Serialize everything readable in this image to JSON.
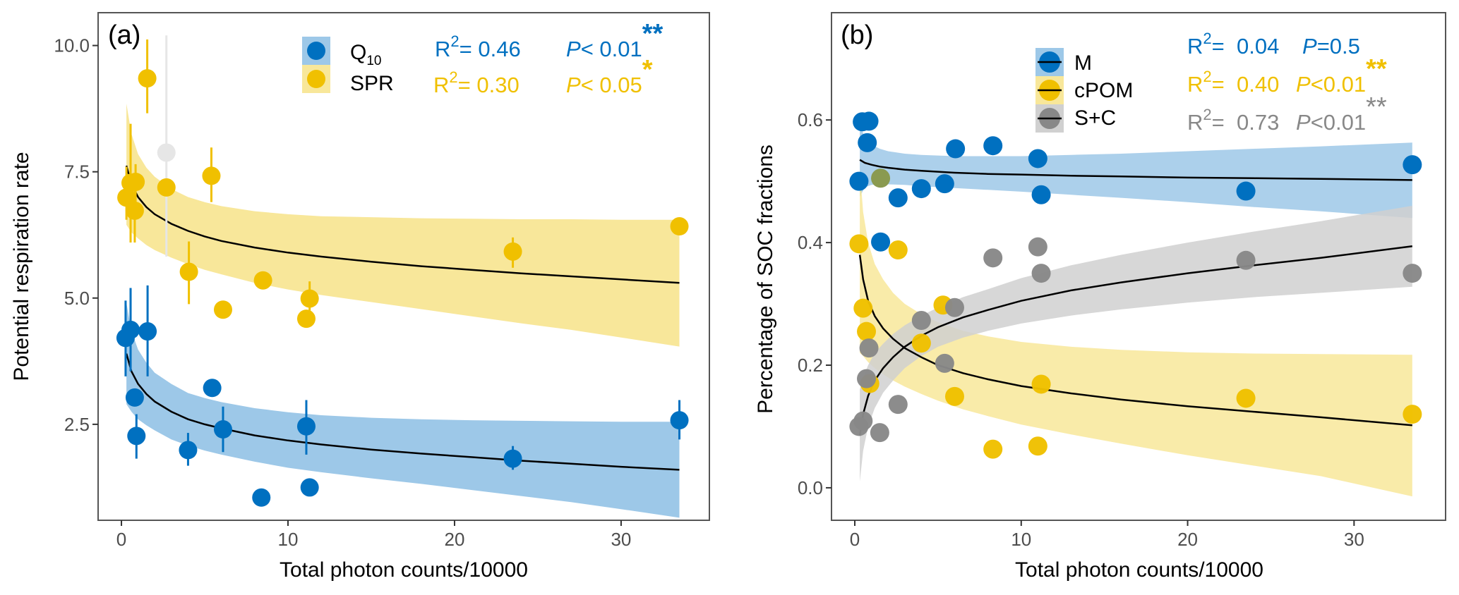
{
  "chart_data": [
    {
      "type": "scatter",
      "panel_label": "(a)",
      "xlabel": "Total photon counts/10000",
      "ylabel": "Potential respiration rate",
      "xlim": [
        -1.4,
        35.3
      ],
      "ylim": [
        0.6,
        10.65
      ],
      "xticks": [
        0,
        10,
        20,
        30
      ],
      "xtick_labels": [
        "0",
        "10",
        "20",
        "30"
      ],
      "yticks": [
        2.5,
        5.0,
        7.5,
        10.0
      ],
      "ytick_labels": [
        "2.5",
        "5.0",
        "7.5",
        "10.0"
      ],
      "grid": false,
      "legend_position": "top-right",
      "series": [
        {
          "name": "Q10",
          "legend_label": "Q",
          "legend_subscript": "10",
          "color": "#0070C0",
          "ribbon_color": "#9DC8E8",
          "stats": {
            "r2_label": "R",
            "r2_sup": "2",
            "r2_value": "= 0.46",
            "p_label": "P",
            "p_value": "< 0.01",
            "signif": "**"
          },
          "points": [
            {
              "x": 0.25,
              "y": 4.21,
              "lo": 3.45,
              "hi": 4.95
            },
            {
              "x": 0.55,
              "y": 4.37,
              "lo": 3.55,
              "hi": 5.2
            },
            {
              "x": 1.57,
              "y": 4.34,
              "lo": 3.45,
              "hi": 5.25
            },
            {
              "x": 0.8,
              "y": 3.03,
              "lo": null,
              "hi": null
            },
            {
              "x": 0.9,
              "y": 2.27,
              "lo": 1.82,
              "hi": 2.7
            },
            {
              "x": 4.0,
              "y": 1.99,
              "lo": 1.68,
              "hi": 2.33
            },
            {
              "x": 5.45,
              "y": 3.22,
              "lo": null,
              "hi": null
            },
            {
              "x": 6.1,
              "y": 2.4,
              "lo": 1.95,
              "hi": 2.85
            },
            {
              "x": 11.1,
              "y": 2.46,
              "lo": 1.9,
              "hi": 2.98
            },
            {
              "x": 8.4,
              "y": 1.05,
              "lo": null,
              "hi": null
            },
            {
              "x": 11.3,
              "y": 1.25,
              "lo": null,
              "hi": null
            },
            {
              "x": 23.5,
              "y": 1.82,
              "lo": 1.6,
              "hi": 2.07
            },
            {
              "x": 33.5,
              "y": 2.58,
              "lo": 2.2,
              "hi": 2.98
            }
          ],
          "fit": {
            "x": [
              0.3,
              0.6,
              1,
              1.5,
              2,
              3,
              4,
              5,
              6,
              8,
              10,
              12,
              15,
              18,
              21,
              24,
              27,
              30,
              33.5
            ],
            "y": [
              3.9,
              3.55,
              3.3,
              3.1,
              2.95,
              2.75,
              2.6,
              2.5,
              2.42,
              2.28,
              2.18,
              2.1,
              2.0,
              1.92,
              1.85,
              1.78,
              1.72,
              1.66,
              1.6
            ],
            "lo": [
              2.9,
              2.75,
              2.6,
              2.48,
              2.38,
              2.2,
              2.08,
              1.98,
              1.9,
              1.76,
              1.64,
              1.55,
              1.43,
              1.32,
              1.2,
              1.08,
              0.96,
              0.82,
              0.65
            ],
            "hi": [
              4.9,
              4.35,
              3.98,
              3.72,
              3.52,
              3.3,
              3.12,
              3.02,
              2.94,
              2.82,
              2.74,
              2.68,
              2.63,
              2.6,
              2.58,
              2.57,
              2.56,
              2.55,
              2.55
            ]
          }
        },
        {
          "name": "SPR",
          "legend_label": "SPR",
          "legend_subscript": "",
          "color": "#F0C000",
          "ribbon_color": "#F8E79A",
          "stats": {
            "r2_label": "R",
            "r2_sup": "2",
            "r2_value": "= 0.30",
            "p_label": "P",
            "p_value": "< 0.05",
            "signif": "*"
          },
          "points": [
            {
              "x": 0.3,
              "y": 6.99,
              "lo": 6.55,
              "hi": 7.6
            },
            {
              "x": 0.55,
              "y": 7.28,
              "lo": 6.1,
              "hi": 8.45
            },
            {
              "x": 0.8,
              "y": 6.73,
              "lo": 6.1,
              "hi": 7.4
            },
            {
              "x": 0.85,
              "y": 7.3,
              "lo": 6.7,
              "hi": 7.65
            },
            {
              "x": 1.55,
              "y": 9.35,
              "lo": 8.66,
              "hi": 10.12
            },
            {
              "x": 2.7,
              "y": 7.19,
              "lo": null,
              "hi": null
            },
            {
              "x": 5.4,
              "y": 7.42,
              "lo": 6.9,
              "hi": 7.98
            },
            {
              "x": 4.05,
              "y": 5.52,
              "lo": 4.88,
              "hi": 6.12
            },
            {
              "x": 6.1,
              "y": 4.77,
              "lo": null,
              "hi": null
            },
            {
              "x": 8.5,
              "y": 5.35,
              "lo": null,
              "hi": null
            },
            {
              "x": 11.1,
              "y": 4.59,
              "lo": null,
              "hi": null
            },
            {
              "x": 11.3,
              "y": 4.99,
              "lo": 4.75,
              "hi": 5.33
            },
            {
              "x": 23.5,
              "y": 5.92,
              "lo": 5.6,
              "hi": 6.2
            },
            {
              "x": 33.5,
              "y": 6.42,
              "lo": null,
              "hi": null
            }
          ],
          "fit": {
            "x": [
              0.3,
              0.6,
              1,
              1.5,
              2,
              3,
              4,
              5,
              6,
              8,
              10,
              12,
              15,
              18,
              21,
              24,
              27,
              30,
              33.5
            ],
            "y": [
              7.62,
              7.25,
              7.0,
              6.8,
              6.66,
              6.47,
              6.33,
              6.22,
              6.13,
              6.0,
              5.9,
              5.82,
              5.72,
              5.63,
              5.56,
              5.49,
              5.43,
              5.37,
              5.3
            ],
            "lo": [
              6.45,
              6.3,
              6.18,
              6.05,
              5.95,
              5.8,
              5.67,
              5.56,
              5.47,
              5.3,
              5.17,
              5.06,
              4.92,
              4.78,
              4.64,
              4.5,
              4.37,
              4.22,
              4.04
            ],
            "hi": [
              8.85,
              8.25,
              7.85,
              7.58,
              7.4,
              7.16,
              7.0,
              6.9,
              6.82,
              6.72,
              6.66,
              6.62,
              6.6,
              6.58,
              6.57,
              6.56,
              6.56,
              6.55,
              6.55
            ]
          }
        }
      ],
      "extra_points": [
        {
          "x": 2.7,
          "y": 7.88,
          "lo": 5.82,
          "hi": 10.2,
          "color": "#E6E6E6"
        }
      ]
    },
    {
      "type": "scatter",
      "panel_label": "(b)",
      "xlabel": "Total photon counts/10000",
      "ylabel": "Percentage of SOC fractions",
      "xlim": [
        -1.4,
        35.5
      ],
      "ylim": [
        -0.053,
        0.775
      ],
      "xticks": [
        0,
        10,
        20,
        30
      ],
      "xtick_labels": [
        "0",
        "10",
        "20",
        "30"
      ],
      "yticks": [
        0.0,
        0.2,
        0.4,
        0.6
      ],
      "ytick_labels": [
        "0.0",
        "0.2",
        "0.4",
        "0.6"
      ],
      "grid": false,
      "legend_position": "top-right",
      "series": [
        {
          "name": "M",
          "legend_label": "M",
          "color": "#0070C0",
          "ribbon_color": "#9DC8E8",
          "stats": {
            "r2_label": "R",
            "r2_sup": "2",
            "r2_value": "=  0.04",
            "p_label": "P",
            "p_value": "=0.5",
            "signif": ""
          },
          "points": [
            {
              "x": 0.45,
              "y": 0.597
            },
            {
              "x": 0.85,
              "y": 0.598
            },
            {
              "x": 0.75,
              "y": 0.563
            },
            {
              "x": 0.25,
              "y": 0.5
            },
            {
              "x": 2.6,
              "y": 0.473
            },
            {
              "x": 4.0,
              "y": 0.488
            },
            {
              "x": 5.4,
              "y": 0.496
            },
            {
              "x": 6.05,
              "y": 0.553
            },
            {
              "x": 8.3,
              "y": 0.558
            },
            {
              "x": 11.0,
              "y": 0.537
            },
            {
              "x": 11.2,
              "y": 0.478
            },
            {
              "x": 1.55,
              "y": 0.401
            },
            {
              "x": 23.5,
              "y": 0.484
            },
            {
              "x": 33.5,
              "y": 0.527
            }
          ],
          "fit": {
            "x": [
              0.3,
              0.6,
              1,
              1.5,
              2,
              3,
              4,
              6,
              8,
              10,
              13,
              16,
              20,
              24,
              28,
              33.5
            ],
            "y": [
              0.535,
              0.53,
              0.527,
              0.524,
              0.522,
              0.519,
              0.517,
              0.514,
              0.512,
              0.511,
              0.509,
              0.508,
              0.506,
              0.505,
              0.504,
              0.502
            ],
            "lo": [
              0.475,
              0.49,
              0.494,
              0.495,
              0.495,
              0.494,
              0.492,
              0.489,
              0.486,
              0.483,
              0.478,
              0.473,
              0.466,
              0.458,
              0.451,
              0.44
            ],
            "hi": [
              0.595,
              0.57,
              0.56,
              0.553,
              0.549,
              0.545,
              0.543,
              0.541,
              0.541,
              0.541,
              0.543,
              0.545,
              0.549,
              0.553,
              0.557,
              0.563
            ]
          }
        },
        {
          "name": "cPOM",
          "legend_label": "cPOM",
          "color": "#F0C000",
          "ribbon_color": "#F8E79A",
          "stats": {
            "r2_label": "R",
            "r2_sup": "2",
            "r2_value": "=  0.40",
            "p_label": "P",
            "p_value": "<0.01",
            "signif": "**"
          },
          "points": [
            {
              "x": 0.25,
              "y": 0.398
            },
            {
              "x": 2.6,
              "y": 0.388
            },
            {
              "x": 0.5,
              "y": 0.293
            },
            {
              "x": 0.7,
              "y": 0.255
            },
            {
              "x": 0.9,
              "y": 0.17
            },
            {
              "x": 4.0,
              "y": 0.236
            },
            {
              "x": 5.3,
              "y": 0.298
            },
            {
              "x": 6.0,
              "y": 0.149
            },
            {
              "x": 11.2,
              "y": 0.169
            },
            {
              "x": 8.3,
              "y": 0.063
            },
            {
              "x": 11.0,
              "y": 0.068
            },
            {
              "x": 23.5,
              "y": 0.146
            },
            {
              "x": 33.5,
              "y": 0.12
            }
          ],
          "overlap_points": [
            {
              "x": 1.55,
              "y": 0.505,
              "color": "#8A9A50"
            }
          ],
          "fit": {
            "x": [
              0.3,
              0.5,
              0.8,
              1.2,
              1.7,
              2.3,
              3,
              4,
              5,
              6.5,
              8,
              10,
              13,
              16,
              20,
              24,
              28,
              33.5
            ],
            "y": [
              0.38,
              0.34,
              0.305,
              0.28,
              0.26,
              0.243,
              0.228,
              0.213,
              0.2,
              0.187,
              0.177,
              0.166,
              0.154,
              0.144,
              0.133,
              0.124,
              0.115,
              0.102
            ],
            "lo": [
              0.22,
              0.215,
              0.205,
              0.195,
              0.185,
              0.175,
              0.165,
              0.153,
              0.142,
              0.128,
              0.117,
              0.103,
              0.087,
              0.072,
              0.053,
              0.036,
              0.019,
              -0.014
            ],
            "hi": [
              0.52,
              0.45,
              0.4,
              0.365,
              0.34,
              0.318,
              0.3,
              0.283,
              0.27,
              0.256,
              0.247,
              0.238,
              0.23,
              0.225,
              0.221,
              0.219,
              0.218,
              0.217
            ]
          }
        },
        {
          "name": "S+C",
          "legend_label": "S+C",
          "color": "#888888",
          "ribbon_color": "#D0D0D0",
          "stats": {
            "r2_label": "R",
            "r2_sup": "2",
            "r2_value": "=  0.73",
            "p_label": "P",
            "p_value": "<0.01",
            "signif": "**"
          },
          "points": [
            {
              "x": 0.25,
              "y": 0.1
            },
            {
              "x": 0.5,
              "y": 0.109
            },
            {
              "x": 1.5,
              "y": 0.09
            },
            {
              "x": 2.6,
              "y": 0.136
            },
            {
              "x": 0.7,
              "y": 0.178
            },
            {
              "x": 0.85,
              "y": 0.228
            },
            {
              "x": 4.0,
              "y": 0.273
            },
            {
              "x": 6.0,
              "y": 0.294
            },
            {
              "x": 5.4,
              "y": 0.203
            },
            {
              "x": 8.3,
              "y": 0.375
            },
            {
              "x": 11.0,
              "y": 0.393
            },
            {
              "x": 11.2,
              "y": 0.35
            },
            {
              "x": 23.5,
              "y": 0.371
            },
            {
              "x": 33.5,
              "y": 0.35
            }
          ],
          "fit": {
            "x": [
              0.3,
              0.5,
              0.8,
              1.2,
              1.7,
              2.3,
              3,
              4,
              5,
              6.5,
              8,
              10,
              13,
              16,
              20,
              24,
              28,
              33.5
            ],
            "y": [
              0.085,
              0.12,
              0.15,
              0.175,
              0.195,
              0.213,
              0.23,
              0.248,
              0.262,
              0.278,
              0.29,
              0.305,
              0.322,
              0.335,
              0.35,
              0.363,
              0.375,
              0.394
            ],
            "lo": [
              0.01,
              0.06,
              0.1,
              0.13,
              0.155,
              0.175,
              0.195,
              0.215,
              0.23,
              0.245,
              0.256,
              0.268,
              0.281,
              0.291,
              0.302,
              0.311,
              0.318,
              0.328
            ],
            "hi": [
              0.16,
              0.18,
              0.2,
              0.22,
              0.235,
              0.251,
              0.265,
              0.281,
              0.294,
              0.311,
              0.324,
              0.342,
              0.363,
              0.38,
              0.4,
              0.418,
              0.435,
              0.46
            ]
          }
        }
      ]
    }
  ]
}
